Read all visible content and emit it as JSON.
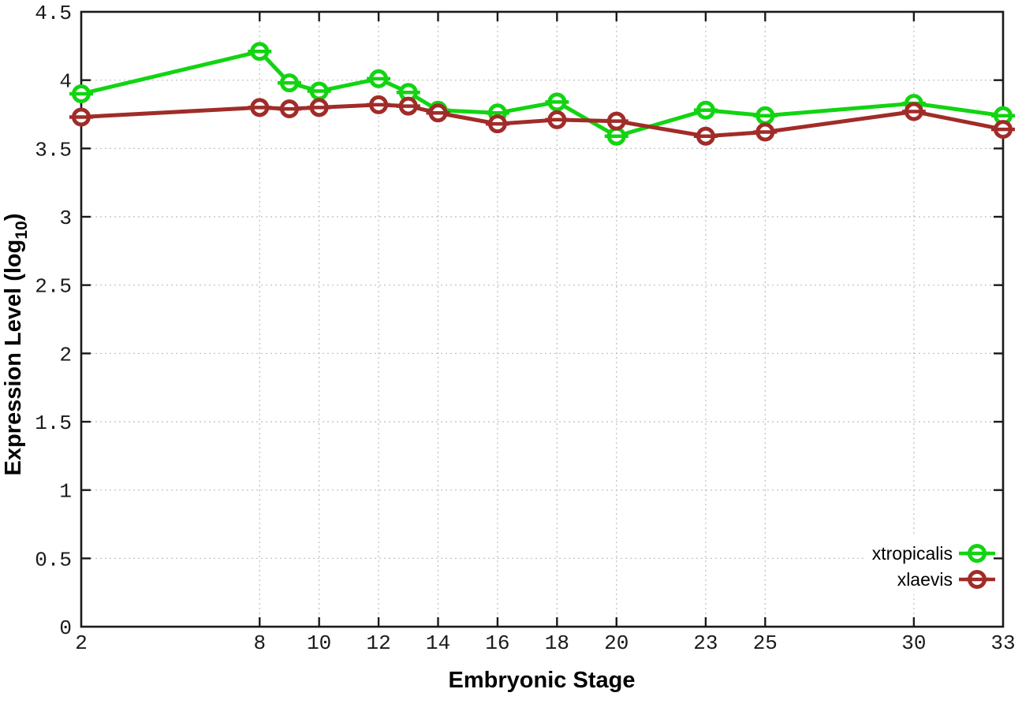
{
  "chart_data": {
    "type": "line",
    "title": "",
    "xlabel": "Embryonic Stage",
    "ylabel": "Expression Level (log10)",
    "ylabel_parts": {
      "pre": "Expression Level (log",
      "sub": "10",
      "post": ")"
    },
    "xlim": [
      2,
      33
    ],
    "ylim": [
      0,
      4.5
    ],
    "grid": true,
    "legend_position": "inside-bottom-right",
    "x_ticks": [
      2,
      8,
      10,
      12,
      14,
      16,
      18,
      20,
      23,
      25,
      30,
      33
    ],
    "x_tick_labels": [
      "2",
      "8",
      "10",
      "12",
      "14",
      "16",
      "18",
      "20",
      "23",
      "25",
      "30",
      "33"
    ],
    "y_ticks": [
      0,
      0.5,
      1,
      1.5,
      2,
      2.5,
      3,
      3.5,
      4,
      4.5
    ],
    "y_tick_labels": [
      "0",
      "0.5",
      "1",
      "1.5",
      "2",
      "2.5",
      "3",
      "3.5",
      "4",
      "4.5"
    ],
    "x": [
      2,
      8,
      9,
      10,
      12,
      13,
      14,
      16,
      18,
      20,
      23,
      25,
      30,
      33
    ],
    "series": [
      {
        "name": "xtropicalis",
        "color": "#12d412",
        "marker": "open-circle-errorbar",
        "values": [
          3.9,
          4.21,
          3.98,
          3.92,
          4.01,
          3.91,
          3.78,
          3.76,
          3.84,
          3.59,
          3.78,
          3.74,
          3.83,
          3.74
        ]
      },
      {
        "name": "xlaevis",
        "color": "#a02c28",
        "marker": "open-circle-errorbar",
        "values": [
          3.73,
          3.8,
          3.79,
          3.8,
          3.82,
          3.81,
          3.76,
          3.68,
          3.71,
          3.7,
          3.59,
          3.62,
          3.77,
          3.64
        ]
      }
    ]
  },
  "style": {
    "axis_color": "#1a1a1a",
    "grid_color": "#bdbdbd",
    "background": "#ffffff",
    "marker_fill": "#ffffff"
  }
}
